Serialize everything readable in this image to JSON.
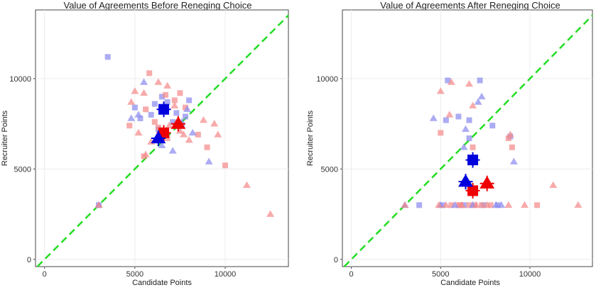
{
  "chart_data": [
    {
      "type": "scatter",
      "title": "Value of Agreements Before Reneging Choice",
      "xlabel": "Candidate Points",
      "ylabel": "Recruiter Points",
      "xlim": [
        -500,
        13500
      ],
      "ylim": [
        -400,
        13800
      ],
      "x_ticks": [
        0,
        5000,
        10000
      ],
      "y_ticks": [
        0,
        5000,
        10000
      ],
      "x_tick_labels": [
        "0",
        "5000",
        "10000"
      ],
      "y_tick_labels": [
        "0",
        "5000",
        "10000"
      ],
      "grid": true,
      "reference_line": {
        "slope": 1,
        "intercept": 0,
        "style": "dashed",
        "color": "#22dd22"
      },
      "colors": {
        "blue": "#0000dd",
        "red": "#ee0000",
        "light_blue": "#8c8cf0",
        "light_red": "#f48a8a"
      },
      "series": [
        {
          "color": "light_blue",
          "shape": "square",
          "points": [
            [
              3500,
              11200
            ],
            [
              5000,
              8400
            ],
            [
              5300,
              7800
            ],
            [
              5900,
              8000
            ],
            [
              6100,
              8600
            ],
            [
              6300,
              7200
            ],
            [
              7100,
              7600
            ],
            [
              7300,
              8100
            ],
            [
              7800,
              7900
            ],
            [
              8000,
              8800
            ],
            [
              6500,
              9000
            ],
            [
              6800,
              8700
            ],
            [
              7600,
              7400
            ],
            [
              3000,
              3000
            ]
          ]
        },
        {
          "color": "light_red",
          "shape": "square",
          "points": [
            [
              5800,
              10300
            ],
            [
              5500,
              5700
            ],
            [
              6300,
              7300
            ],
            [
              6700,
              9100
            ],
            [
              6800,
              6700
            ],
            [
              7200,
              8800
            ],
            [
              7500,
              9200
            ],
            [
              7800,
              8400
            ],
            [
              8500,
              6900
            ],
            [
              9000,
              6200
            ],
            [
              10000,
              5200
            ],
            [
              4700,
              7400
            ],
            [
              5600,
              8300
            ],
            [
              6100,
              7600
            ]
          ]
        },
        {
          "color": "light_blue",
          "shape": "triangle",
          "points": [
            [
              4800,
              7800
            ],
            [
              5200,
              8000
            ],
            [
              5500,
              9800
            ],
            [
              6500,
              6300
            ],
            [
              7100,
              6000
            ],
            [
              7600,
              7600
            ],
            [
              7900,
              8300
            ],
            [
              8200,
              7000
            ],
            [
              9100,
              5400
            ],
            [
              3000,
              3000
            ]
          ]
        },
        {
          "color": "light_red",
          "shape": "triangle",
          "points": [
            [
              4800,
              8700
            ],
            [
              5000,
              9300
            ],
            [
              5500,
              9200
            ],
            [
              5200,
              7000
            ],
            [
              5600,
              5800
            ],
            [
              5900,
              6500
            ],
            [
              6300,
              9800
            ],
            [
              6800,
              9600
            ],
            [
              6900,
              7400
            ],
            [
              7200,
              8500
            ],
            [
              7500,
              7100
            ],
            [
              7700,
              6900
            ],
            [
              8000,
              6600
            ],
            [
              8800,
              7700
            ],
            [
              9400,
              7500
            ],
            [
              9600,
              6900
            ],
            [
              11200,
              4100
            ],
            [
              12500,
              2500
            ],
            [
              3000,
              3000
            ]
          ]
        },
        {
          "color": "blue",
          "shape": "square",
          "size": "mean",
          "points": [
            [
              6600,
              8300
            ]
          ]
        },
        {
          "color": "red",
          "shape": "square",
          "size": "mean",
          "points": [
            [
              6600,
              7000
            ]
          ]
        },
        {
          "color": "blue",
          "shape": "triangle",
          "size": "mean",
          "points": [
            [
              6300,
              6700
            ]
          ]
        },
        {
          "color": "red",
          "shape": "triangle",
          "size": "mean",
          "points": [
            [
              7400,
              7500
            ]
          ]
        }
      ]
    },
    {
      "type": "scatter",
      "title": "Value of Agreements After Reneging Choice",
      "xlabel": "Candidate Points",
      "ylabel": "Recruiter Points",
      "xlim": [
        -500,
        13500
      ],
      "ylim": [
        -400,
        13800
      ],
      "x_ticks": [
        0,
        5000,
        10000
      ],
      "y_ticks": [
        0,
        5000,
        10000
      ],
      "x_tick_labels": [
        "0",
        "5000",
        "10000"
      ],
      "y_tick_labels": [
        "0",
        "5000",
        "10000"
      ],
      "grid": true,
      "reference_line": {
        "slope": 1,
        "intercept": 0,
        "style": "dashed",
        "color": "#22dd22"
      },
      "colors": {
        "blue": "#0000dd",
        "red": "#ee0000",
        "light_blue": "#8c8cf0",
        "light_red": "#f48a8a"
      },
      "series": [
        {
          "color": "light_blue",
          "shape": "square",
          "points": [
            [
              5400,
              9900
            ],
            [
              7200,
              9900
            ],
            [
              5300,
              7700
            ],
            [
              6000,
              7900
            ],
            [
              6600,
              7700
            ],
            [
              7900,
              7400
            ],
            [
              8900,
              6800
            ],
            [
              6600,
              6700
            ],
            [
              3800,
              3000
            ],
            [
              5100,
              3000
            ],
            [
              6300,
              3000
            ],
            [
              7400,
              3000
            ],
            [
              8200,
              3000
            ]
          ]
        },
        {
          "color": "light_red",
          "shape": "square",
          "points": [
            [
              5000,
              7000
            ],
            [
              6800,
              6200
            ],
            [
              8800,
              6700
            ],
            [
              9000,
              6200
            ],
            [
              5600,
              3000
            ],
            [
              6100,
              3000
            ],
            [
              6900,
              3000
            ],
            [
              7300,
              3000
            ],
            [
              7800,
              3000
            ],
            [
              10400,
              3000
            ],
            [
              6000,
              3000
            ],
            [
              6600,
              3000
            ]
          ]
        },
        {
          "color": "light_blue",
          "shape": "triangle",
          "points": [
            [
              4600,
              7800
            ],
            [
              7300,
              9000
            ],
            [
              7100,
              8700
            ],
            [
              6400,
              7200
            ],
            [
              6300,
              6200
            ],
            [
              9100,
              5400
            ],
            [
              5000,
              3000
            ],
            [
              5800,
              3000
            ],
            [
              6800,
              3000
            ],
            [
              8100,
              3000
            ],
            [
              8400,
              3000
            ],
            [
              3000,
              3000
            ]
          ]
        },
        {
          "color": "light_red",
          "shape": "triangle",
          "points": [
            [
              5000,
              9300
            ],
            [
              5600,
              9800
            ],
            [
              6600,
              9700
            ],
            [
              5500,
              8000
            ],
            [
              6800,
              8500
            ],
            [
              8900,
              6900
            ],
            [
              4900,
              3000
            ],
            [
              5300,
              3000
            ],
            [
              6200,
              3000
            ],
            [
              7000,
              3000
            ],
            [
              7600,
              3000
            ],
            [
              8800,
              3000
            ],
            [
              9700,
              3000
            ],
            [
              11300,
              4100
            ],
            [
              12700,
              3000
            ],
            [
              3000,
              3000
            ]
          ]
        },
        {
          "color": "blue",
          "shape": "square",
          "size": "mean",
          "points": [
            [
              6800,
              5500
            ]
          ]
        },
        {
          "color": "red",
          "shape": "square",
          "size": "mean",
          "points": [
            [
              6800,
              3800
            ]
          ]
        },
        {
          "color": "blue",
          "shape": "triangle",
          "size": "mean",
          "points": [
            [
              6400,
              4300
            ]
          ]
        },
        {
          "color": "red",
          "shape": "triangle",
          "size": "mean",
          "points": [
            [
              7600,
              4200
            ]
          ]
        }
      ]
    }
  ]
}
